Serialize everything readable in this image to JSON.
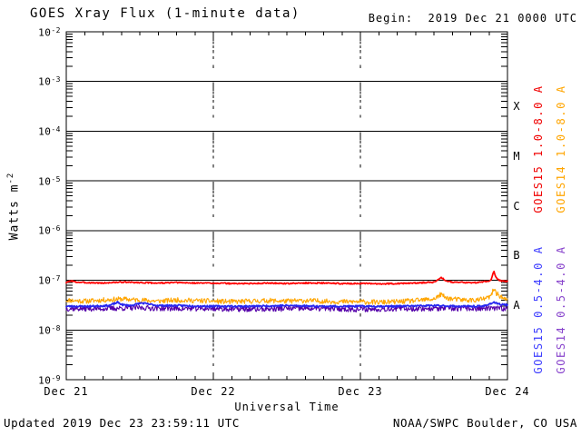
{
  "header": {
    "title": "GOES Xray Flux (1-minute data)",
    "begin_label": "Begin:  2019 Dec 21 0000 UTC"
  },
  "footer": {
    "updated": "Updated 2019 Dec 23 23:59:11 UTC",
    "source": "NOAA/SWPC Boulder, CO USA"
  },
  "chart_data": {
    "type": "line",
    "title": "GOES Xray Flux (1-minute data)",
    "begin": "2019 Dec 21 0000 UTC",
    "xlabel": "Universal Time",
    "ylabel": "Watts m^-2",
    "ylabel_main": "Watts m",
    "ylabel_exp": "-2",
    "x_range_hours": [
      0,
      72
    ],
    "ylim": [
      1e-09,
      0.01
    ],
    "y_scale": "log",
    "y_tick_exponents": [
      -2,
      -3,
      -4,
      -5,
      -6,
      -7,
      -8,
      -9
    ],
    "x_ticks": [
      {
        "label": "Dec 21",
        "hour": 0
      },
      {
        "label": "Dec 22",
        "hour": 24
      },
      {
        "label": "Dec 23",
        "hour": 48
      },
      {
        "label": "Dec 24",
        "hour": 72
      }
    ],
    "gridline_days_hours": [
      24,
      48
    ],
    "flare_class_letters": [
      "X",
      "M",
      "C",
      "B",
      "A"
    ],
    "legend_position": "right, rotated vertical",
    "series": [
      {
        "name": "GOES15 1.0-8.0 A",
        "color": "#ff0000",
        "label_color": "#f00000",
        "noise": 0.012,
        "seed": 3,
        "points": [
          [
            0,
            9e-08
          ],
          [
            0.8,
            9.8e-08
          ],
          [
            1.5,
            9.2e-08
          ],
          [
            3,
            9e-08
          ],
          [
            6,
            8.8e-08
          ],
          [
            9,
            9.2e-08
          ],
          [
            12,
            9e-08
          ],
          [
            15,
            8.8e-08
          ],
          [
            18,
            9e-08
          ],
          [
            21,
            8.8e-08
          ],
          [
            24,
            8.8e-08
          ],
          [
            27,
            8.6e-08
          ],
          [
            30,
            8.6e-08
          ],
          [
            33,
            8.8e-08
          ],
          [
            36,
            8.6e-08
          ],
          [
            39,
            8.8e-08
          ],
          [
            42,
            8.8e-08
          ],
          [
            45,
            8.6e-08
          ],
          [
            48,
            8.6e-08
          ],
          [
            51,
            8.5e-08
          ],
          [
            54,
            8.6e-08
          ],
          [
            57,
            8.8e-08
          ],
          [
            60,
            9.2e-08
          ],
          [
            61.2,
            1.15e-07
          ],
          [
            61.8,
            1e-07
          ],
          [
            63,
            9.2e-08
          ],
          [
            65,
            9e-08
          ],
          [
            67,
            9e-08
          ],
          [
            68.5,
            9.5e-08
          ],
          [
            69.3,
            1e-07
          ],
          [
            69.8,
            1.55e-07
          ],
          [
            70.1,
            1.15e-07
          ],
          [
            70.6,
            1e-07
          ],
          [
            71.2,
            9.6e-08
          ],
          [
            72,
            9.5e-08
          ]
        ]
      },
      {
        "name": "GOES14 1.0-8.0 A",
        "color": "#ffa500",
        "label_color": "#ffa500",
        "noise": 0.05,
        "seed": 11,
        "points": [
          [
            0,
            4e-08
          ],
          [
            3,
            3.8e-08
          ],
          [
            6,
            4e-08
          ],
          [
            9,
            4.2e-08
          ],
          [
            12,
            4e-08
          ],
          [
            15,
            3.8e-08
          ],
          [
            18,
            4e-08
          ],
          [
            21,
            3.9e-08
          ],
          [
            24,
            3.8e-08
          ],
          [
            27,
            3.7e-08
          ],
          [
            30,
            3.8e-08
          ],
          [
            33,
            3.9e-08
          ],
          [
            36,
            3.8e-08
          ],
          [
            39,
            3.9e-08
          ],
          [
            42,
            3.8e-08
          ],
          [
            45,
            3.7e-08
          ],
          [
            48,
            3.7e-08
          ],
          [
            51,
            3.6e-08
          ],
          [
            54,
            3.7e-08
          ],
          [
            57,
            3.9e-08
          ],
          [
            60,
            4.2e-08
          ],
          [
            61.2,
            5.2e-08
          ],
          [
            61.8,
            4.5e-08
          ],
          [
            63,
            4.2e-08
          ],
          [
            65,
            4e-08
          ],
          [
            67,
            4e-08
          ],
          [
            68.5,
            4.3e-08
          ],
          [
            69.3,
            4.8e-08
          ],
          [
            69.8,
            6.8e-08
          ],
          [
            70.2,
            5.5e-08
          ],
          [
            70.8,
            4.8e-08
          ],
          [
            71.5,
            4.2e-08
          ],
          [
            72,
            3.9e-08
          ]
        ]
      },
      {
        "name": "GOES15 0.5-4.0 A",
        "color": "#2626f0",
        "label_color": "#3d3dff",
        "noise": 0.018,
        "seed": 23,
        "points": [
          [
            0,
            3e-08
          ],
          [
            4,
            3e-08
          ],
          [
            7,
            3.1e-08
          ],
          [
            8.4,
            3.6e-08
          ],
          [
            9.2,
            3.2e-08
          ],
          [
            10.5,
            3.1e-08
          ],
          [
            12.3,
            3.5e-08
          ],
          [
            13.5,
            3.3e-08
          ],
          [
            15,
            3.1e-08
          ],
          [
            18,
            3.1e-08
          ],
          [
            24,
            3e-08
          ],
          [
            30,
            3e-08
          ],
          [
            36,
            3.1e-08
          ],
          [
            42,
            3e-08
          ],
          [
            48,
            3e-08
          ],
          [
            54,
            3e-08
          ],
          [
            60,
            3.1e-08
          ],
          [
            64,
            3e-08
          ],
          [
            68,
            3e-08
          ],
          [
            69.8,
            3.6e-08
          ],
          [
            70.5,
            3.3e-08
          ],
          [
            72,
            3.2e-08
          ]
        ]
      },
      {
        "name": "GOES14 0.5-4.0 A",
        "color": "#5500aa",
        "label_color": "#8844cc",
        "noise": 0.055,
        "seed": 37,
        "points": [
          [
            0,
            2.7e-08
          ],
          [
            6,
            2.7e-08
          ],
          [
            12,
            2.8e-08
          ],
          [
            18,
            2.7e-08
          ],
          [
            24,
            2.7e-08
          ],
          [
            30,
            2.6e-08
          ],
          [
            36,
            2.7e-08
          ],
          [
            42,
            2.7e-08
          ],
          [
            48,
            2.6e-08
          ],
          [
            54,
            2.7e-08
          ],
          [
            60,
            2.7e-08
          ],
          [
            66,
            2.7e-08
          ],
          [
            72,
            2.7e-08
          ]
        ]
      }
    ]
  }
}
